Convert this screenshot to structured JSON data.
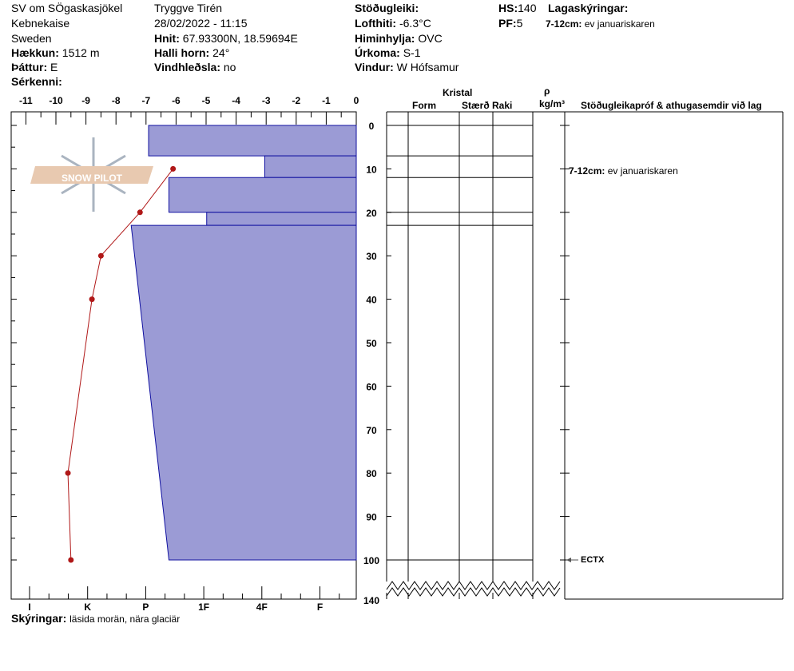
{
  "header": {
    "location": "SV om SÖgaskasjökel",
    "area": "Kebnekaise",
    "country": "Sweden",
    "elevation_label": "Hækkun:",
    "elevation": "1512 m",
    "aspect_label": "Þáttur:",
    "aspect": "E",
    "features_label": "Sérkenni:",
    "observer": "Tryggve  Tirén",
    "datetime": "28/02/2022 - 11:15",
    "coords_label": "Hnit:",
    "coords": "67.93300N, 18.59694E",
    "slope_label": "Halli horn:",
    "slope": "24°",
    "wind_loading_label": "Vindhleðsla:",
    "wind_loading": "no",
    "stability_label": "Stöðugleiki:",
    "air_temp_label": "Lofthiti:",
    "air_temp": "-6.3°C",
    "sky_label": "Himinhylja:",
    "sky": "OVC",
    "precip_label": "Úrkoma:",
    "precip": "S-1",
    "wind_label": "Vindur:",
    "wind": "W Hófsamur",
    "hs_label": "HS:",
    "hs": "140",
    "pf_label": "PF:",
    "pf": "5",
    "layer_notes_label": "Lagaskýringar:",
    "layer_note_depth": "7-12cm:",
    "layer_note_text": "ev januariskaren"
  },
  "columns": {
    "kristal": "Kristal",
    "form": "Form",
    "size": "Stærð",
    "moisture": "Raki",
    "rho": "ρ",
    "density_unit": "kg/m³",
    "tests": "Stöðugleikapróf & athugasemdir við lag"
  },
  "temp_ticks": [
    "-11",
    "-10",
    "-9",
    "-8",
    "-7",
    "-6",
    "-5",
    "-4",
    "-3",
    "-2",
    "-1",
    "0"
  ],
  "depth_ticks": [
    "0",
    "10",
    "20",
    "30",
    "40",
    "50",
    "60",
    "70",
    "80",
    "90",
    "100"
  ],
  "depth_bottom": "140",
  "hardness_ticks": [
    "I",
    "K",
    "P",
    "1F",
    "4F",
    "F"
  ],
  "layers": [
    {
      "top": 0,
      "bottom": 7,
      "hard_top": 2.05,
      "hard_bottom": 2.05
    },
    {
      "top": 7,
      "bottom": 12,
      "hard_top": 4.05,
      "hard_bottom": 4.05
    },
    {
      "top": 12,
      "bottom": 20,
      "hard_top": 2.4,
      "hard_bottom": 2.4
    },
    {
      "top": 20,
      "bottom": 23,
      "hard_top": 3.05,
      "hard_bottom": 3.05
    },
    {
      "top": 23,
      "bottom": 100,
      "hard_top": 1.75,
      "hard_bottom": 2.4
    }
  ],
  "temperatures": [
    {
      "depth": 10,
      "temp": -6.1
    },
    {
      "depth": 20,
      "temp": -7.2
    },
    {
      "depth": 30,
      "temp": -8.5
    },
    {
      "depth": 40,
      "temp": -8.8
    },
    {
      "depth": 80,
      "temp": -9.6
    },
    {
      "depth": 100,
      "temp": -9.5
    }
  ],
  "layer_comment": {
    "depth": "7-12cm:",
    "text": "ev januariskaren"
  },
  "test_result": "ECTX",
  "footer": {
    "label": "Skýringar:",
    "text": "läsida morän, nära glaciär"
  },
  "logo_text": "SNOW PILOT",
  "colors": {
    "layer_fill": "#9b9bd5",
    "layer_stroke": "#1010a0",
    "temp": "#b01818"
  }
}
